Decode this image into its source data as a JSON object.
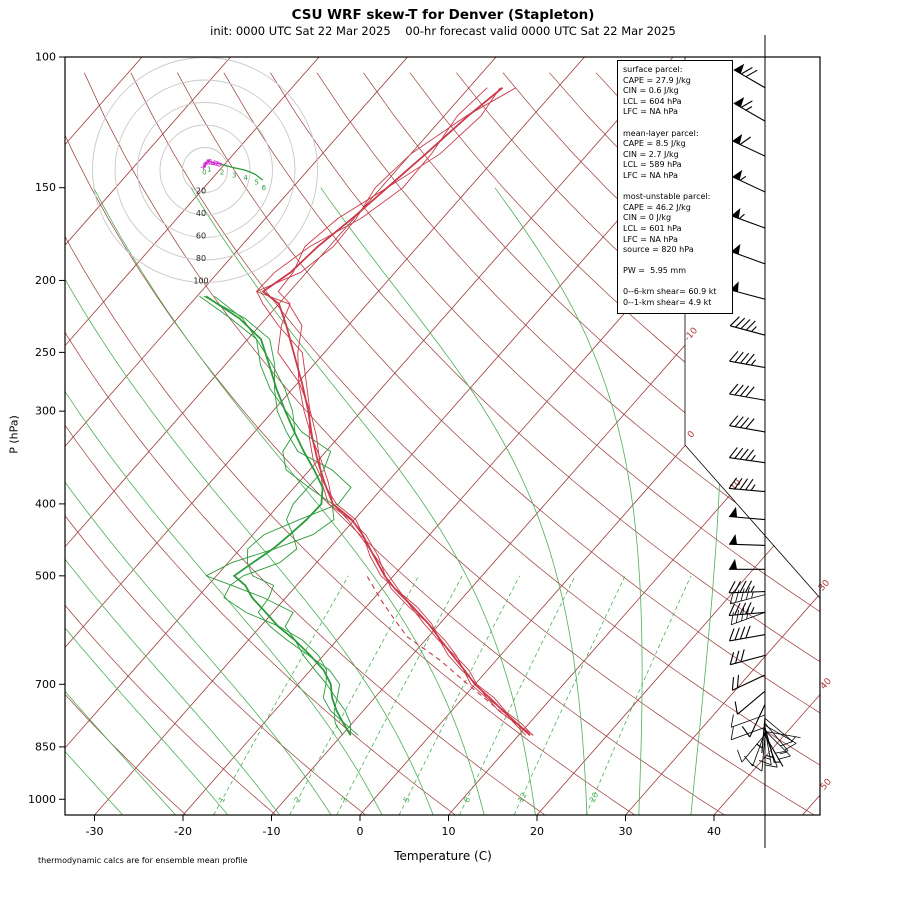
{
  "title": "CSU WRF skew-T for Denver (Stapleton)",
  "subtitle": "init: 0000 UTC Sat 22 Mar 2025    00-hr forecast valid 0000 UTC Sat 22 Mar 2025",
  "xlabel": "Temperature (C)",
  "ylabel": "P (hPa)",
  "footnote": "thermodynamic calcs are for ensemble mean profile",
  "info_box": {
    "lines": [
      "surface parcel:",
      "CAPE = 27.9 J/kg",
      "CIN = 0.6 J/kg",
      "LCL = 604 hPa",
      "LFC = NA hPa",
      "",
      "mean-layer parcel:",
      "CAPE = 8.5 J/kg",
      "CIN = 2.7 J/kg",
      "LCL = 589 hPa",
      "LFC = NA hPa",
      "",
      "most-unstable parcel:",
      "CAPE = 46.2 J/kg",
      "CIN = 0 J/kg",
      "LCL = 601 hPa",
      "LFC = NA hPa",
      "source = 820 hPa",
      "",
      "PW =  5.95 mm",
      "",
      "0--6-km shear= 60.9 kt",
      "0--1-km shear= 4.9 kt"
    ]
  },
  "chart_data": {
    "type": "skewt-logp",
    "pressure_axis": {
      "ticks": [
        100,
        150,
        200,
        250,
        300,
        400,
        500,
        700,
        850,
        1000
      ],
      "range": [
        100,
        1050
      ],
      "scale": "log"
    },
    "temp_axis": {
      "ticks": [
        -30,
        -20,
        -10,
        0,
        10,
        20,
        30,
        40
      ],
      "unit": "C"
    },
    "skew_isotherms": {
      "start": -120,
      "end": 50,
      "step": 10,
      "labels": [
        -10,
        0,
        10,
        30,
        40,
        50
      ]
    },
    "dry_adiabats_K": {
      "start": 250,
      "end": 480,
      "step": 10
    },
    "moist_adiabats_C": {
      "start": -30,
      "end": 36,
      "step": 6
    },
    "mixing_ratio_lines_gkg": [
      1,
      2,
      3,
      5,
      8,
      12,
      20
    ],
    "temperature_profile": {
      "pressure": [
        820,
        790,
        760,
        730,
        700,
        670,
        640,
        610,
        580,
        550,
        520,
        500,
        470,
        440,
        420,
        400,
        375,
        350,
        325,
        300,
        275,
        250,
        230,
        215,
        207,
        195,
        180,
        165,
        150,
        135,
        120,
        110
      ],
      "temp_c": [
        11.3,
        8.6,
        5.8,
        3.0,
        0.0,
        -2.6,
        -5.4,
        -8.3,
        -11.3,
        -14.8,
        -18.6,
        -21.0,
        -24.2,
        -27.6,
        -30.3,
        -34.0,
        -37.0,
        -40.0,
        -43.0,
        -46.0,
        -49.5,
        -53.5,
        -57.0,
        -60.0,
        -63.0,
        -61.8,
        -61.3,
        -60.2,
        -59.3,
        -58.3,
        -57.3,
        -56.2
      ]
    },
    "dewpoint_profile": {
      "pressure": [
        820,
        790,
        760,
        730,
        700,
        670,
        640,
        610,
        585,
        560,
        535,
        515,
        500,
        480,
        460,
        440,
        420,
        400,
        380,
        360,
        340,
        320,
        300,
        280,
        260,
        240,
        225,
        210
      ],
      "dewpoint_c": [
        -9.0,
        -11.0,
        -13.0,
        -14.8,
        -16.3,
        -18.5,
        -21.5,
        -24.8,
        -28.0,
        -30.8,
        -33.8,
        -35.8,
        -38.0,
        -37.2,
        -36.3,
        -35.8,
        -35.4,
        -35.3,
        -36.8,
        -39.5,
        -42.5,
        -45.5,
        -48.6,
        -51.8,
        -55.0,
        -58.5,
        -63.0,
        -69.0
      ]
    },
    "parcel_trace": {
      "pressure": [
        820,
        780,
        740,
        700,
        650,
        604,
        570,
        540,
        500
      ],
      "temp_c": [
        11.3,
        7.4,
        3.4,
        -0.8,
        -6.3,
        -12.4,
        -15.8,
        -18.9,
        -23.0
      ]
    },
    "ensemble": {
      "members": 3,
      "temp_spread_c": 1.8,
      "dew_spread_c": 3.2
    },
    "wind_barbs": [
      [
        110,
        70,
        300
      ],
      [
        122,
        65,
        300
      ],
      [
        136,
        60,
        295
      ],
      [
        152,
        55,
        295
      ],
      [
        170,
        55,
        290
      ],
      [
        190,
        50,
        290
      ],
      [
        212,
        50,
        285
      ],
      [
        237,
        45,
        285
      ],
      [
        262,
        45,
        280
      ],
      [
        290,
        40,
        280
      ],
      [
        320,
        40,
        280
      ],
      [
        352,
        45,
        278
      ],
      [
        385,
        45,
        275
      ],
      [
        420,
        50,
        275
      ],
      [
        455,
        50,
        272
      ],
      [
        490,
        50,
        270
      ],
      [
        525,
        45,
        268
      ],
      [
        560,
        45,
        265
      ],
      [
        600,
        40,
        260
      ],
      [
        640,
        30,
        255
      ],
      [
        680,
        20,
        245
      ],
      [
        715,
        12,
        230
      ],
      [
        745,
        8,
        205
      ],
      [
        775,
        6,
        185
      ],
      [
        800,
        5,
        165
      ],
      [
        820,
        4,
        150
      ]
    ],
    "wind_barb_members": [
      [
        530,
        45,
        255
      ],
      [
        560,
        40,
        250
      ],
      [
        770,
        12,
        250
      ],
      [
        778,
        10,
        130
      ],
      [
        790,
        10,
        140
      ],
      [
        795,
        12,
        120
      ],
      [
        800,
        8,
        250
      ],
      [
        805,
        15,
        170
      ],
      [
        808,
        14,
        135
      ],
      [
        810,
        6,
        100
      ],
      [
        812,
        10,
        200
      ],
      [
        815,
        12,
        160
      ],
      [
        818,
        8,
        220
      ],
      [
        820,
        10,
        185
      ]
    ],
    "hodograph": {
      "ring_speeds_kt": [
        20,
        40,
        60,
        80,
        100
      ],
      "point_labels": [
        "0",
        "1",
        "2",
        "3",
        "4",
        "5",
        "6"
      ],
      "magenta_count": 8,
      "trace_uv_kt": [
        [
          -1.7,
          4.7
        ],
        [
          0.2,
          3.0
        ],
        [
          1.0,
          6.8
        ],
        [
          2.7,
          7.5
        ],
        [
          6.0,
          7.0
        ],
        [
          8.0,
          6.5
        ],
        [
          11.0,
          5.8
        ],
        [
          14.1,
          5.1
        ],
        [
          19.0,
          3.8
        ],
        [
          24.9,
          2.2
        ],
        [
          30.0,
          1.2
        ],
        [
          35.0,
          0.0
        ],
        [
          40.0,
          -1.8
        ],
        [
          44.8,
          -3.9
        ],
        [
          51.2,
          -9.0
        ]
      ],
      "km_points": [
        [
          -1.7,
          4.7
        ],
        [
          2.7,
          7.5
        ],
        [
          14.1,
          5.1
        ],
        [
          24.9,
          2.2
        ],
        [
          35.0,
          0.0
        ],
        [
          44.8,
          -3.9
        ],
        [
          51.2,
          -9.0
        ]
      ]
    },
    "colors": {
      "isotherm": "#9c3a3a",
      "moist": "#4fae57",
      "mixing": "#4fae57",
      "temp": "#cb3a4a",
      "dew": "#2b9b3b",
      "parcel": "#cb3a4a",
      "hodo_trace": "#cc22cc",
      "hodo_ring": "#c9c9c9",
      "label_red": "#b03434",
      "barb": "#000000"
    }
  }
}
